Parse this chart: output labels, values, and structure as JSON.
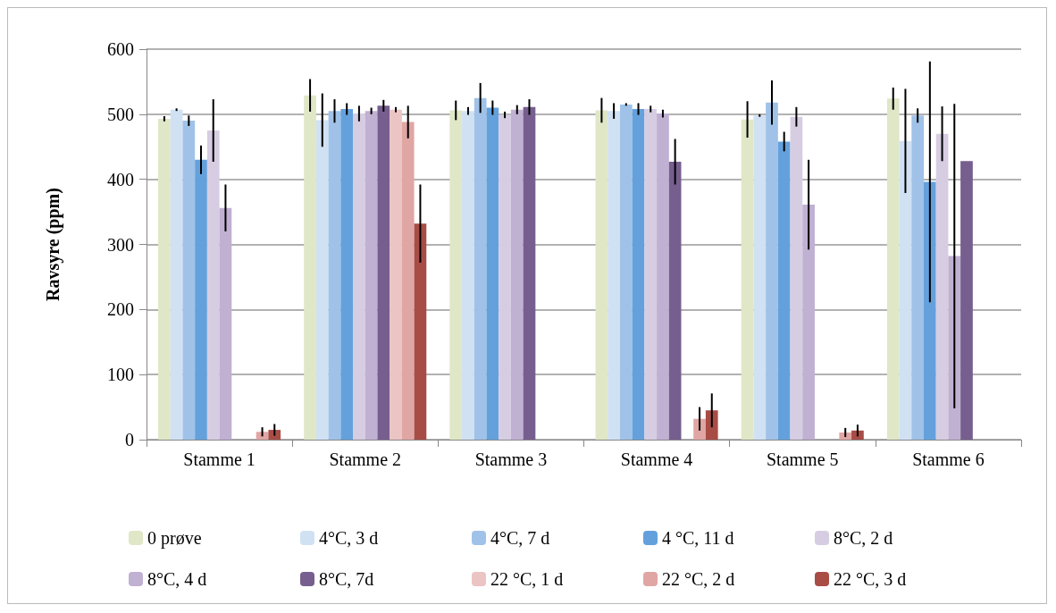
{
  "chart_data": {
    "type": "bar",
    "ylabel": "Ravsyre (ppm)",
    "categories": [
      "Stamme 1",
      "Stamme 2",
      "Stamme 3",
      "Stamme 4",
      "Stamme 5",
      "Stamme 6"
    ],
    "ylim": [
      0,
      600
    ],
    "yticks": [
      0,
      100,
      200,
      300,
      400,
      500,
      600
    ],
    "grid": "y",
    "legend": "bottom",
    "series": [
      {
        "name": "0 prøve",
        "color": "#dfe7c7",
        "values": [
          493,
          529,
          506,
          506,
          492,
          524
        ],
        "errors": [
          4,
          25,
          15,
          19,
          28,
          17
        ]
      },
      {
        "name": "4°C, 3 d",
        "color": "#d0e1f3",
        "values": [
          507,
          491,
          505,
          505,
          498,
          459
        ],
        "errors": [
          2,
          41,
          6,
          12,
          2,
          80
        ]
      },
      {
        "name": "4°C, 7 d",
        "color": "#a0c2e8",
        "values": [
          490,
          505,
          525,
          515,
          518,
          498
        ],
        "errors": [
          8,
          18,
          23,
          2,
          34,
          11
        ]
      },
      {
        "name": "4 °C, 11 d",
        "color": "#64a1dc",
        "values": [
          430,
          508,
          510,
          508,
          458,
          396
        ],
        "errors": [
          22,
          9,
          11,
          9,
          15,
          185
        ]
      },
      {
        "name": "8°C, 2 d",
        "color": "#d7cde2",
        "values": [
          475,
          501,
          499,
          508,
          496,
          470
        ],
        "errors": [
          48,
          12,
          5,
          5,
          15,
          42
        ]
      },
      {
        "name": "8°C, 4 d",
        "color": "#c0b0d2",
        "values": [
          356,
          505,
          507,
          501,
          361,
          282
        ],
        "errors": [
          36,
          5,
          7,
          6,
          69,
          234
        ]
      },
      {
        "name": "8°C, 7d",
        "color": "#765f8e",
        "values": [
          null,
          513,
          511,
          427,
          null,
          428
        ],
        "errors": [
          null,
          9,
          12,
          35,
          null,
          null
        ]
      },
      {
        "name": "22 °C, 1 d",
        "color": "#ebc4c4",
        "values": [
          null,
          507,
          null,
          null,
          null,
          null
        ],
        "errors": [
          null,
          4,
          null,
          null,
          null,
          null
        ]
      },
      {
        "name": "22 °C, 2 d",
        "color": "#e0a6a4",
        "values": [
          12,
          488,
          null,
          32,
          11,
          null
        ],
        "errors": [
          7,
          25,
          null,
          18,
          7,
          null
        ]
      },
      {
        "name": "22 °C, 3 d",
        "color": "#a84c46",
        "values": [
          15,
          332,
          null,
          45,
          14,
          null
        ],
        "errors": [
          9,
          60,
          null,
          26,
          9,
          null
        ]
      }
    ]
  }
}
